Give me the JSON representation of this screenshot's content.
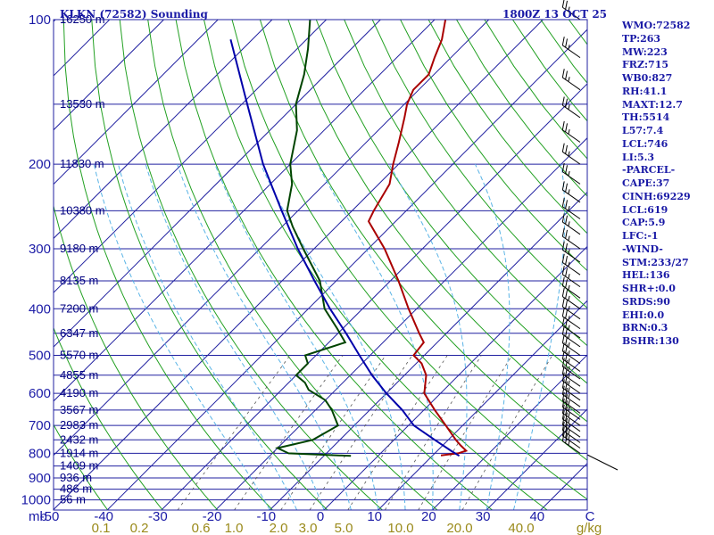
{
  "header": {
    "station": "KLKN (72582) Sounding",
    "time": "1800Z 13 OCT 25"
  },
  "indices": [
    "WMO:72582",
    "TP:263",
    "MW:223",
    "FRZ:715",
    "WB0:827",
    "RH:41.1",
    "MAXT:12.7",
    "TH:5514",
    "L57:7.4",
    "LCL:746",
    "LI:5.3",
    "-PARCEL-",
    "CAPE:37",
    "CINH:69229",
    "LCL:619",
    "CAP:5.9",
    "LFC:-1",
    "-WIND-",
    "STM:233/27",
    "HEL:136",
    "SHR+:0.0",
    "SRDS:90",
    "EHI:0.0",
    "BRN:0.3",
    "BSHR:130"
  ],
  "colors": {
    "isobar": "#2020a0",
    "isotherm": "#2020a0",
    "dry_adiabat": "#22a022",
    "moist_adiabat": "#5ab4e6",
    "mixing_ratio": "#555555",
    "temperature": "#aa0000",
    "dewpoint": "#004400",
    "parcel": "#0000aa",
    "wind_barb": "#000000"
  },
  "chart_data": {
    "type": "skew-t",
    "title": "KLKN (72582) Sounding  1800Z 13 OCT 25",
    "xlabel": "C",
    "ylabel": "mb",
    "xlim": [
      -50,
      50
    ],
    "ylim": [
      1050,
      100
    ],
    "pressure_labels": [
      100,
      200,
      300,
      400,
      500,
      600,
      700,
      800,
      900,
      1000
    ],
    "isotherm_labels": [
      "-50",
      "-40",
      "-30",
      "-20",
      "-10",
      "0",
      "10",
      "20",
      "30",
      "40"
    ],
    "isotherm_values": [
      -50,
      -40,
      -30,
      -20,
      -10,
      0,
      10,
      20,
      30,
      40
    ],
    "mixing_ratio_labels": [
      "0.1",
      "0.2",
      "0.6",
      "1.0",
      "2.0",
      "3.0",
      "5.0",
      "10.0",
      "20.0",
      "40.0"
    ],
    "mixing_ratio_unit": "g/kg",
    "height_labels": [
      {
        "p": 100,
        "label": "16250 m"
      },
      {
        "p": 150,
        "label": "13530 m"
      },
      {
        "p": 200,
        "label": "11830 m"
      },
      {
        "p": 250,
        "label": "10380 m"
      },
      {
        "p": 300,
        "label": "9180 m"
      },
      {
        "p": 350,
        "label": "8135 m"
      },
      {
        "p": 400,
        "label": "7200 m"
      },
      {
        "p": 450,
        "label": "6347 m"
      },
      {
        "p": 500,
        "label": "5570 m"
      },
      {
        "p": 550,
        "label": "4855 m"
      },
      {
        "p": 600,
        "label": "4190 m"
      },
      {
        "p": 650,
        "label": "3567 m"
      },
      {
        "p": 700,
        "label": "2983 m"
      },
      {
        "p": 750,
        "label": "2432 m"
      },
      {
        "p": 800,
        "label": "1914 m"
      },
      {
        "p": 850,
        "label": "1409 m"
      },
      {
        "p": 900,
        "label": "936 m"
      },
      {
        "p": 950,
        "label": "486 m"
      },
      {
        "p": 1000,
        "label": "56 m"
      }
    ],
    "series": [
      {
        "name": "Temperature",
        "points": [
          {
            "p": 808,
            "t": 11.5
          },
          {
            "p": 800,
            "t": 14.3
          },
          {
            "p": 790,
            "t": 15.3
          },
          {
            "p": 770,
            "t": 13.3
          },
          {
            "p": 750,
            "t": 11.4
          },
          {
            "p": 700,
            "t": 6.9
          },
          {
            "p": 650,
            "t": 2.0
          },
          {
            "p": 600,
            "t": -3.0
          },
          {
            "p": 550,
            "t": -6.0
          },
          {
            "p": 520,
            "t": -9.0
          },
          {
            "p": 500,
            "t": -12.0
          },
          {
            "p": 470,
            "t": -12.5
          },
          {
            "p": 450,
            "t": -15.0
          },
          {
            "p": 400,
            "t": -21.5
          },
          {
            "p": 350,
            "t": -28.5
          },
          {
            "p": 300,
            "t": -37.0
          },
          {
            "p": 263,
            "t": -45.0
          },
          {
            "p": 250,
            "t": -46.0
          },
          {
            "p": 220,
            "t": -48.0
          },
          {
            "p": 200,
            "t": -51.0
          },
          {
            "p": 180,
            "t": -54.0
          },
          {
            "p": 160,
            "t": -57.5
          },
          {
            "p": 150,
            "t": -59.5
          },
          {
            "p": 140,
            "t": -61.0
          },
          {
            "p": 130,
            "t": -61.0
          },
          {
            "p": 120,
            "t": -63.0
          },
          {
            "p": 110,
            "t": -65.0
          },
          {
            "p": 100,
            "t": -68.0
          }
        ]
      },
      {
        "name": "Dewpoint",
        "points": [
          {
            "p": 810,
            "t": -5.0
          },
          {
            "p": 800,
            "t": -17.0
          },
          {
            "p": 780,
            "t": -20.0
          },
          {
            "p": 750,
            "t": -15.0
          },
          {
            "p": 700,
            "t": -13.0
          },
          {
            "p": 650,
            "t": -17.0
          },
          {
            "p": 620,
            "t": -20.0
          },
          {
            "p": 590,
            "t": -25.0
          },
          {
            "p": 570,
            "t": -27.0
          },
          {
            "p": 550,
            "t": -30.0
          },
          {
            "p": 520,
            "t": -30.0
          },
          {
            "p": 500,
            "t": -32.0
          },
          {
            "p": 470,
            "t": -27.0
          },
          {
            "p": 440,
            "t": -31.0
          },
          {
            "p": 400,
            "t": -37.0
          },
          {
            "p": 350,
            "t": -43.0
          },
          {
            "p": 300,
            "t": -52.0
          },
          {
            "p": 270,
            "t": -58.0
          },
          {
            "p": 250,
            "t": -62.0
          },
          {
            "p": 220,
            "t": -66.0
          },
          {
            "p": 200,
            "t": -70.0
          },
          {
            "p": 170,
            "t": -75.0
          },
          {
            "p": 150,
            "t": -80.0
          },
          {
            "p": 130,
            "t": -84.0
          },
          {
            "p": 115,
            "t": -88.0
          },
          {
            "p": 100,
            "t": -93.0
          }
        ]
      },
      {
        "name": "Parcel",
        "points": [
          {
            "p": 810,
            "t": 15.0
          },
          {
            "p": 790,
            "t": 12.5
          },
          {
            "p": 750,
            "t": 7.5
          },
          {
            "p": 700,
            "t": 1.0
          },
          {
            "p": 650,
            "t": -4.0
          },
          {
            "p": 600,
            "t": -10.0
          },
          {
            "p": 550,
            "t": -16.0
          },
          {
            "p": 500,
            "t": -22.0
          },
          {
            "p": 450,
            "t": -28.5
          },
          {
            "p": 400,
            "t": -36.0
          },
          {
            "p": 350,
            "t": -44.0
          },
          {
            "p": 300,
            "t": -53.0
          },
          {
            "p": 250,
            "t": -63.0
          },
          {
            "p": 200,
            "t": -75.0
          },
          {
            "p": 150,
            "t": -89.0
          },
          {
            "p": 110,
            "t": -104.0
          }
        ]
      }
    ],
    "wind_profile_levels_mb": [
      800,
      780,
      760,
      740,
      720,
      700,
      680,
      660,
      640,
      620,
      600,
      580,
      560,
      540,
      520,
      500,
      480,
      460,
      440,
      420,
      400,
      380,
      360,
      340,
      320,
      300,
      280,
      260,
      240,
      220,
      200,
      180,
      160,
      140,
      120,
      100
    ],
    "storm_motion_deg": 233,
    "grid": true,
    "legend": "none"
  }
}
